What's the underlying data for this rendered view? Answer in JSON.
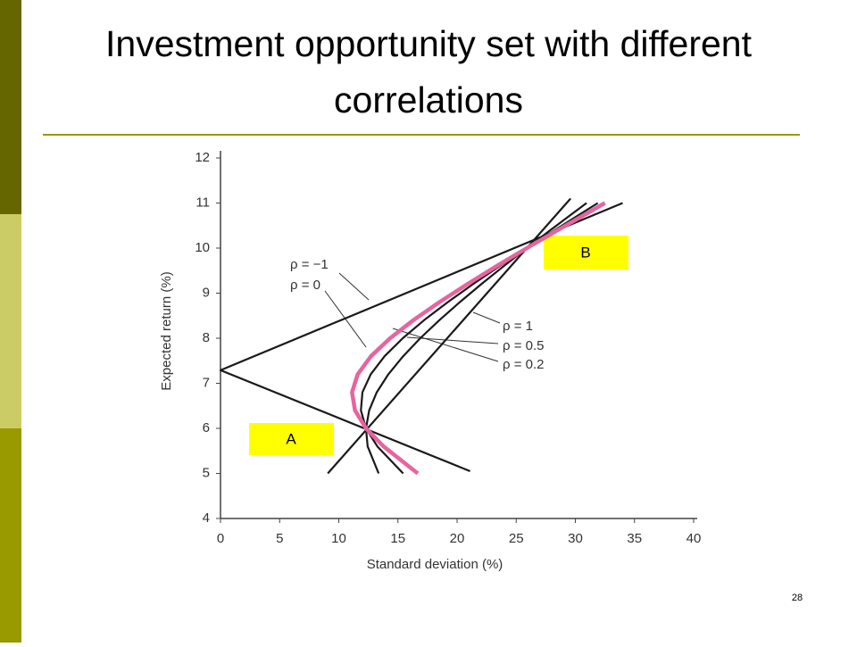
{
  "title": "Investment opportunity set with different correlations",
  "slide_number": "28",
  "chart_data": {
    "type": "line",
    "xlabel": "Standard deviation (%)",
    "ylabel": "Expected return (%)",
    "xlim": [
      0,
      40
    ],
    "ylim": [
      4,
      12
    ],
    "xticks": [
      0,
      5,
      10,
      15,
      20,
      25,
      30,
      35,
      40
    ],
    "yticks": [
      4,
      5,
      6,
      7,
      8,
      9,
      10,
      11,
      12
    ],
    "series": [
      {
        "name": "ρ = −1",
        "color": "#1a1a1a",
        "x": [
          21.1,
          0,
          34.0
        ],
        "values": [
          5.05,
          7.29,
          11.0
        ]
      },
      {
        "name": "ρ = 1",
        "color": "#1a1a1a",
        "x": [
          9.07,
          29.6
        ],
        "values": [
          5.0,
          11.1
        ]
      },
      {
        "name": "ρ = 0.5",
        "color": "#1a1a1a",
        "x": [
          13.37,
          12.44,
          12.3,
          12.57,
          13.21,
          14.19,
          15.44,
          16.89,
          18.5,
          20.23,
          22.05,
          23.95,
          25.9,
          27.9,
          30.95
        ],
        "values": [
          5.0,
          5.6,
          6.0,
          6.4,
          6.8,
          7.2,
          7.6,
          8.0,
          8.4,
          8.8,
          9.2,
          9.6,
          10.0,
          10.4,
          11.0
        ]
      },
      {
        "name": "ρ = 0.2",
        "color": "#1a1a1a",
        "x": [
          15.44,
          13.26,
          12.3,
          11.87,
          12.0,
          12.7,
          13.87,
          15.41,
          17.21,
          19.21,
          21.35,
          23.59,
          25.9,
          28.27,
          31.9
        ],
        "values": [
          5.0,
          5.6,
          6.0,
          6.4,
          6.8,
          7.2,
          7.6,
          8.0,
          8.4,
          8.8,
          9.2,
          9.6,
          10.0,
          10.4,
          11.0
        ]
      },
      {
        "name": "ρ = 0",
        "color": "#e8649f",
        "x": [
          16.68,
          13.78,
          12.3,
          11.37,
          11.12,
          11.6,
          12.72,
          14.34,
          16.3,
          18.5,
          20.87,
          23.34,
          25.9,
          28.52,
          32.5
        ],
        "values": [
          5.0,
          5.6,
          6.0,
          6.4,
          6.8,
          7.2,
          7.6,
          8.0,
          8.4,
          8.8,
          9.2,
          9.6,
          10.0,
          10.4,
          11.0
        ]
      }
    ],
    "annotations": [
      {
        "text": "A"
      },
      {
        "text": "B"
      }
    ]
  }
}
